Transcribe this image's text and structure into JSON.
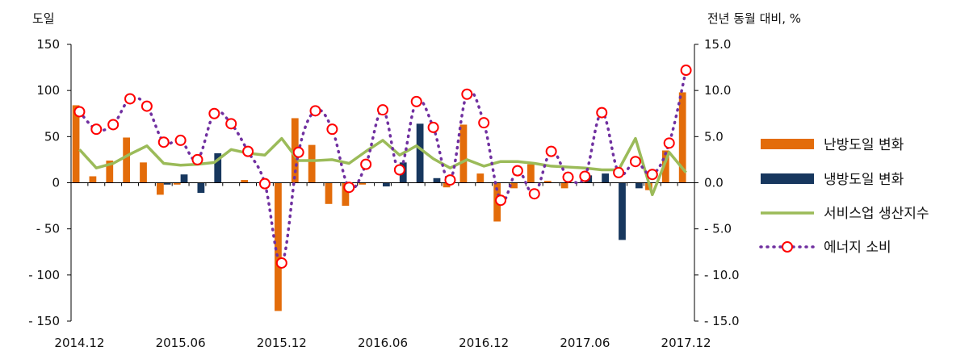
{
  "chart_data": {
    "type": "bar",
    "left_axis": {
      "title": "도일",
      "ticks": [
        150,
        100,
        50,
        0,
        -50,
        -100,
        -150
      ],
      "tick_labels": [
        "150",
        "100",
        "50",
        "0",
        "- 50",
        "- 100",
        "- 150"
      ],
      "ylim": [
        -150,
        150
      ]
    },
    "right_axis": {
      "title": "전년 동월 대비, %",
      "ticks": [
        15,
        10,
        5,
        0,
        -5,
        -10,
        -15
      ],
      "tick_labels": [
        "15.0",
        "10.0",
        "5.0",
        "0.0",
        "- 5.0",
        "- 10.0",
        "- 15.0"
      ],
      "ylim": [
        -15,
        15
      ]
    },
    "x_ticks": [
      {
        "index": 0,
        "label": "2014.12"
      },
      {
        "index": 6,
        "label": "2015.06"
      },
      {
        "index": 12,
        "label": "2015.12"
      },
      {
        "index": 18,
        "label": "2016.06"
      },
      {
        "index": 24,
        "label": "2016.12"
      },
      {
        "index": 30,
        "label": "2017.06"
      },
      {
        "index": 36,
        "label": "2017.12"
      }
    ],
    "series": [
      {
        "name": "난방도일 변화",
        "kind": "bar",
        "axis": "left",
        "color": "#E36C0A",
        "values": [
          84,
          7,
          24,
          49,
          22,
          -13,
          -2,
          0,
          0,
          0,
          3,
          0,
          -139,
          70,
          41,
          -23,
          -25,
          -2,
          0,
          0,
          0,
          0,
          -5,
          63,
          10,
          -42,
          -6,
          20,
          2,
          -6,
          0,
          0,
          0,
          0,
          -8,
          35,
          98
        ]
      },
      {
        "name": "냉방도일 변화",
        "kind": "bar",
        "axis": "left",
        "color": "#17375E",
        "values": [
          0,
          0,
          0,
          0,
          0,
          -2,
          9,
          -11,
          32,
          0,
          0,
          0,
          0,
          0,
          0,
          0,
          0,
          0,
          -4,
          22,
          64,
          5,
          0,
          0,
          0,
          0,
          0,
          0,
          0,
          0,
          8,
          10,
          -62,
          -6,
          0,
          0,
          0
        ]
      },
      {
        "name": "서비스업 생산지수",
        "kind": "line",
        "axis": "right",
        "color": "#9BBB59",
        "values": [
          3.6,
          1.6,
          2.1,
          3.1,
          4.0,
          2.1,
          1.9,
          2.0,
          2.2,
          3.6,
          3.2,
          3.0,
          4.8,
          2.4,
          2.4,
          2.5,
          2.1,
          3.4,
          4.6,
          3.0,
          4.0,
          2.6,
          1.6,
          2.5,
          1.8,
          2.3,
          2.3,
          2.1,
          1.8,
          1.7,
          1.6,
          1.4,
          1.4,
          4.8,
          -1.3,
          3.3,
          1.1
        ]
      },
      {
        "name": "에너지 소비",
        "kind": "dotted-line-markers",
        "axis": "right",
        "color": "#7030A0",
        "marker_color": "#FF0000",
        "values": [
          7.7,
          5.8,
          6.3,
          9.1,
          8.3,
          4.4,
          4.6,
          2.5,
          7.5,
          6.4,
          3.4,
          -0.1,
          -8.7,
          3.3,
          7.8,
          5.8,
          -0.5,
          2.0,
          7.9,
          1.4,
          8.8,
          6.0,
          0.3,
          9.6,
          6.5,
          -1.9,
          1.3,
          -1.2,
          3.4,
          0.6,
          0.7,
          7.6,
          1.1,
          2.3,
          0.9,
          4.3,
          12.2
        ]
      }
    ],
    "legend": {
      "placement": "right",
      "entries": [
        "난방도일 변화",
        "냉방도일 변화",
        "서비스업 생산지수",
        "에너지 소비"
      ]
    },
    "grid": false
  }
}
